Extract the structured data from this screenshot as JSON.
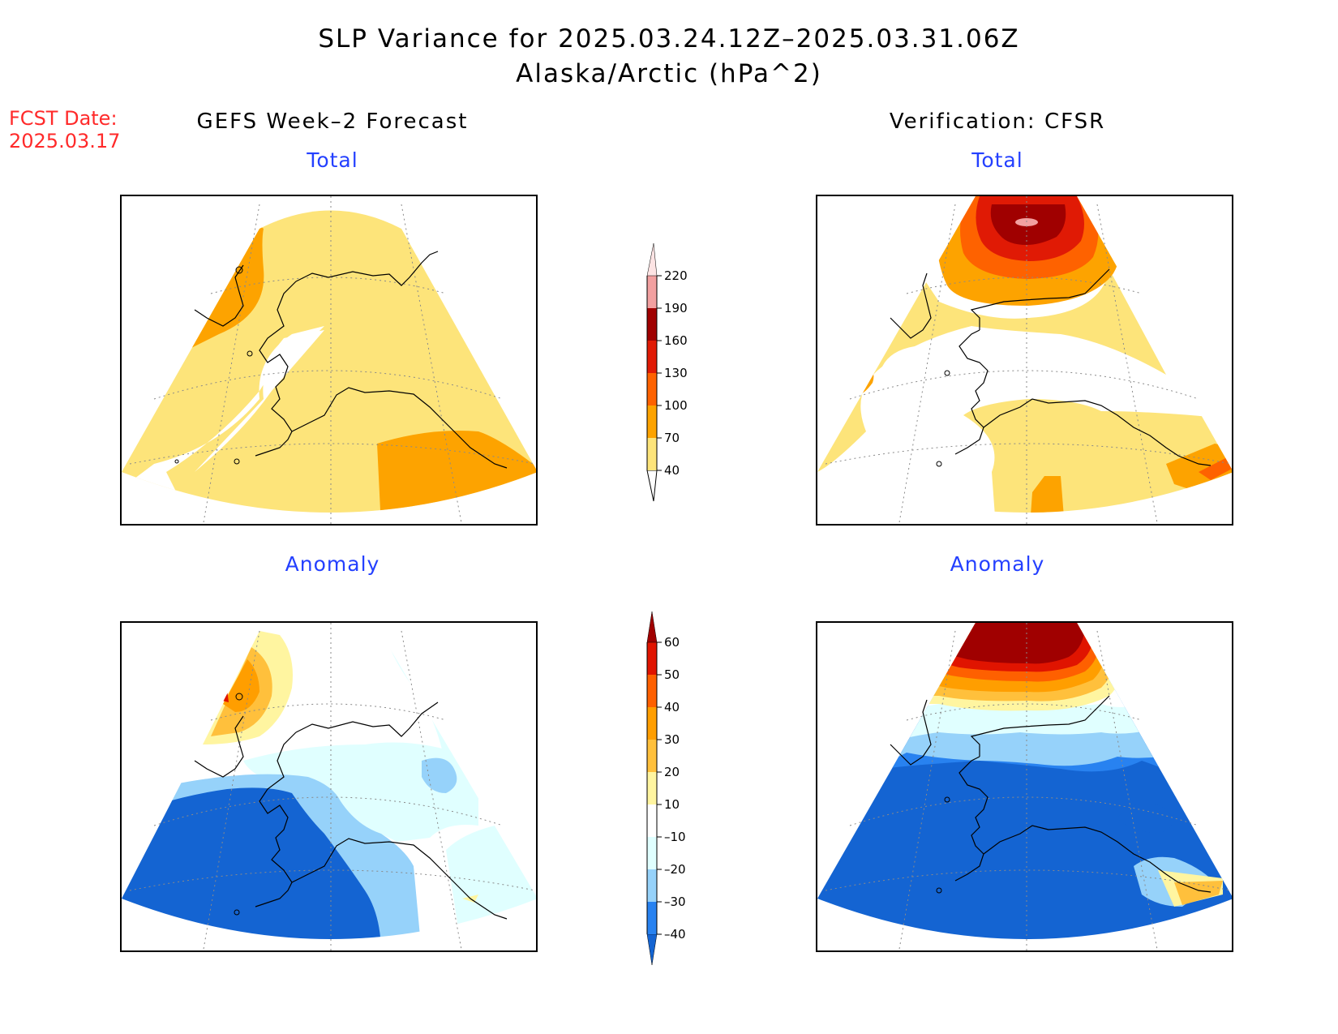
{
  "title": {
    "line1": "SLP Variance for 2025.03.24.12Z–2025.03.31.06Z",
    "line2": "Alaska/Arctic (hPa^2)"
  },
  "fcst": {
    "label": "FCST Date:",
    "date": "2025.03.17"
  },
  "columns": {
    "left": "GEFS Week–2 Forecast",
    "right": "Verification: CFSR"
  },
  "panels": {
    "total_label": "Total",
    "anomaly_label": "Anomaly"
  },
  "colorbars": {
    "total": {
      "labels": [
        "40",
        "70",
        "100",
        "130",
        "160",
        "190",
        "220"
      ],
      "colors": [
        "#fde47a",
        "#fda300",
        "#fe6200",
        "#e01a05",
        "#a00000",
        "#f2a0a0",
        "#fde4e4"
      ]
    },
    "anomaly": {
      "labels": [
        "–40",
        "–30",
        "–20",
        "–10",
        "10",
        "20",
        "30",
        "40",
        "50",
        "60"
      ],
      "colors": [
        "#1464d2",
        "#2882f0",
        "#96d2fa",
        "#e0ffff",
        "#ffffff",
        "#fff5a0",
        "#ffc03c",
        "#ff9e00",
        "#fe6000",
        "#e01400",
        "#a00000"
      ]
    }
  },
  "legend_colors": {
    "white": "#ffffff",
    "lightyellow": "#fde47a",
    "orange": "#fda300",
    "darkorange": "#fe6200",
    "red": "#e01a05",
    "darkred": "#a00000",
    "pink": "#f2a0a0",
    "lightblue": "#e0ffff",
    "skyblue": "#96d2fa",
    "blue": "#2882f0",
    "darkblue": "#1464d2"
  }
}
